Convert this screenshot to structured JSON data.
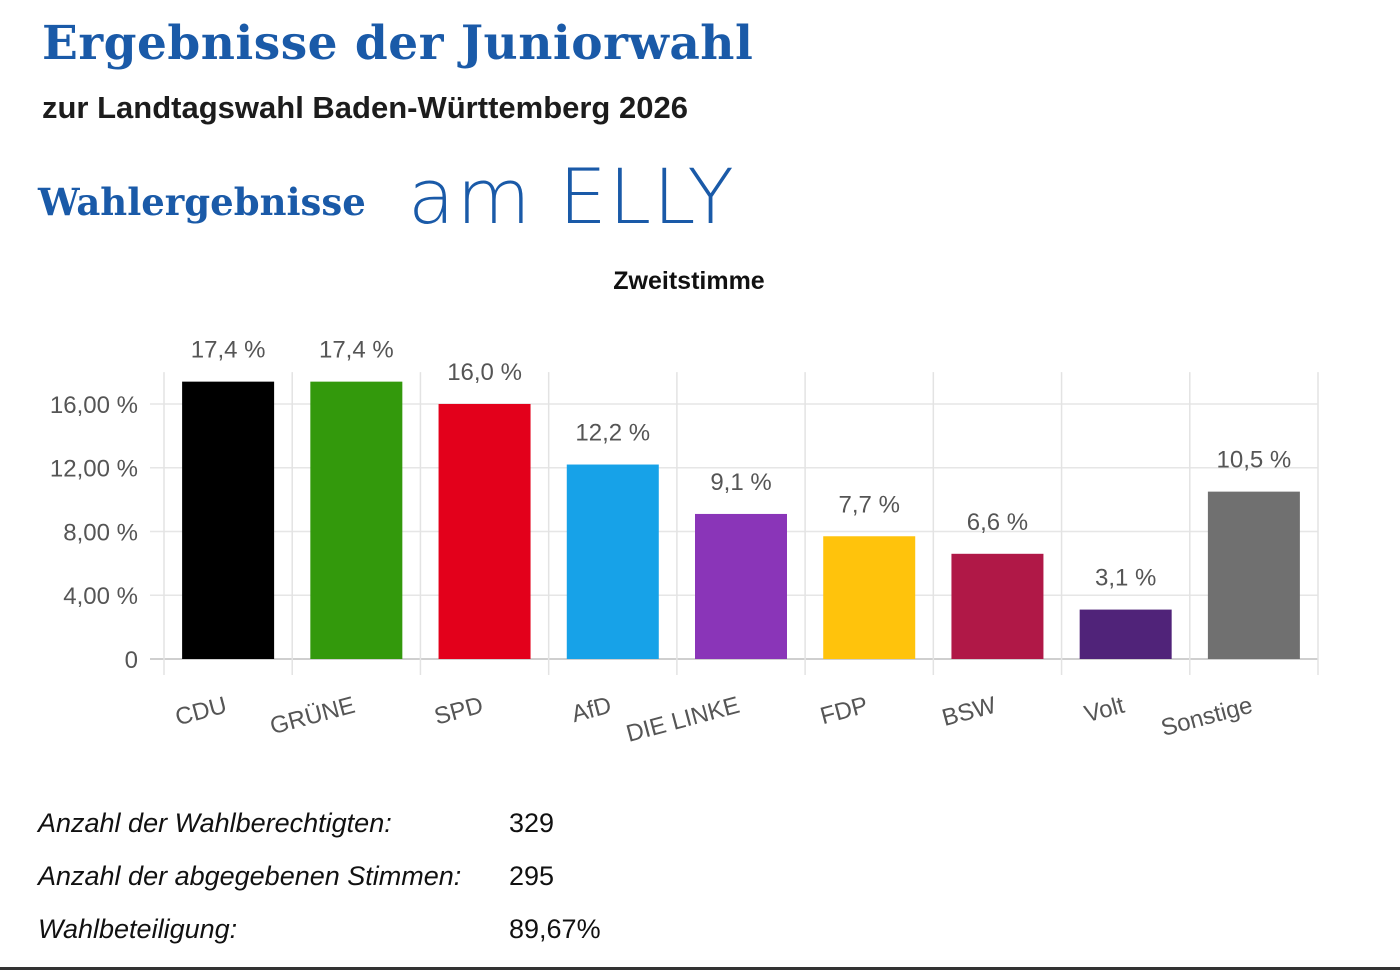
{
  "header": {
    "title": "Ergebnisse der Juniorwahl",
    "subtitle": "zur Landtagswahl Baden-Württemberg 2026",
    "section": "Wahlergebnisse",
    "logo_text": "am ELLY"
  },
  "chart_data": {
    "type": "bar",
    "title": "Zweitstimme",
    "xlabel": "",
    "ylabel": "",
    "ylim": [
      0,
      18
    ],
    "yticks": [
      0,
      4,
      8,
      12,
      16
    ],
    "ytick_labels": [
      "0",
      "4,00 %",
      "8,00 %",
      "12,00 %",
      "16,00 %"
    ],
    "grid": true,
    "categories": [
      "CDU",
      "GRÜNE",
      "SPD",
      "AfD",
      "DIE LINKE",
      "FDP",
      "BSW",
      "Volt",
      "Sonstige"
    ],
    "values": [
      17.4,
      17.4,
      16.0,
      12.2,
      9.1,
      7.7,
      6.6,
      3.1,
      10.5
    ],
    "data_labels": [
      "17,4 %",
      "17,4 %",
      "16,0 %",
      "12,2 %",
      "9,1 %",
      "7,7 %",
      "6,6 %",
      "3,1 %",
      "10,5 %"
    ],
    "colors": [
      "#000000",
      "#33990c",
      "#e3001b",
      "#17a2e8",
      "#8a35b8",
      "#ffc30c",
      "#b01847",
      "#502379",
      "#707070"
    ]
  },
  "stats": [
    {
      "label": "Anzahl der Wahlberechtigten:",
      "value": "329"
    },
    {
      "label": "Anzahl der abgegebenen Stimmen:",
      "value": "295"
    },
    {
      "label": "Wahlbeteiligung:",
      "value": "89,67%"
    }
  ]
}
